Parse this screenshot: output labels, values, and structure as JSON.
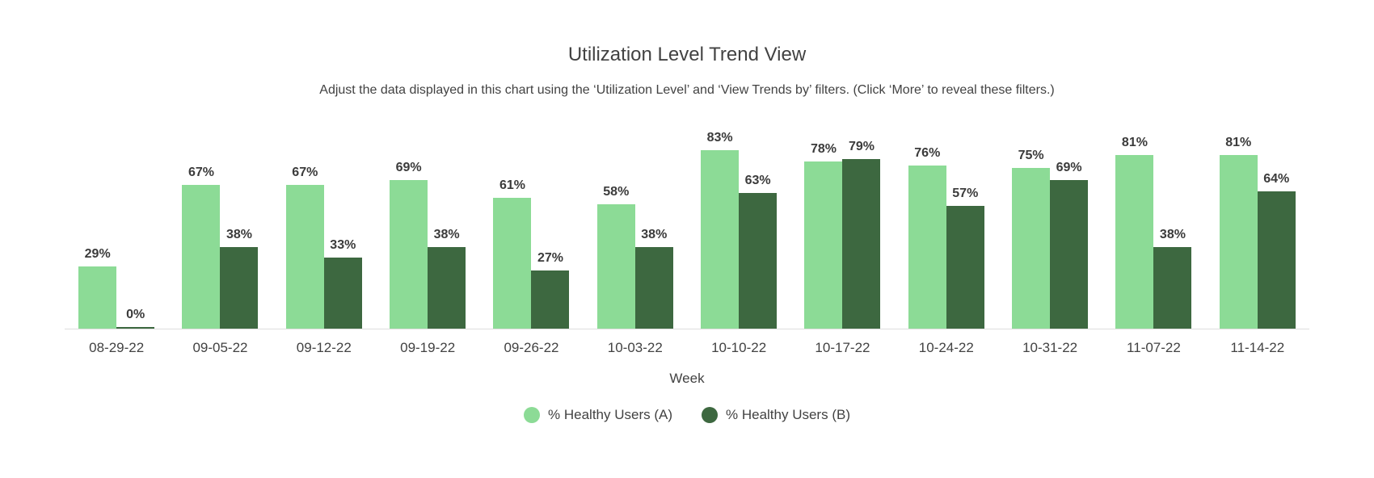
{
  "chart_data": {
    "type": "bar",
    "title": "Utilization Level Trend View",
    "subtitle": "Adjust the data displayed in this chart using the ‘Utilization Level’ and ‘View Trends by’ filters. (Click ‘More’ to reveal these filters.)",
    "categories": [
      "08-29-22",
      "09-05-22",
      "09-12-22",
      "09-19-22",
      "09-26-22",
      "10-03-22",
      "10-10-22",
      "10-17-22",
      "10-24-22",
      "10-31-22",
      "11-07-22",
      "11-14-22"
    ],
    "series": [
      {
        "name": "% Healthy Users (A)",
        "color": "#8CDB96",
        "values": [
          29,
          67,
          67,
          69,
          61,
          58,
          83,
          78,
          76,
          75,
          81,
          81
        ]
      },
      {
        "name": "% Healthy Users (B)",
        "color": "#3D6840",
        "values": [
          0,
          38,
          33,
          38,
          27,
          38,
          63,
          79,
          57,
          69,
          38,
          64
        ]
      }
    ],
    "xlabel": "Week",
    "ylabel": "",
    "ylim": [
      0,
      100
    ],
    "value_suffix": "%",
    "data_labels": true,
    "grid": false,
    "legend_position": "bottom"
  }
}
